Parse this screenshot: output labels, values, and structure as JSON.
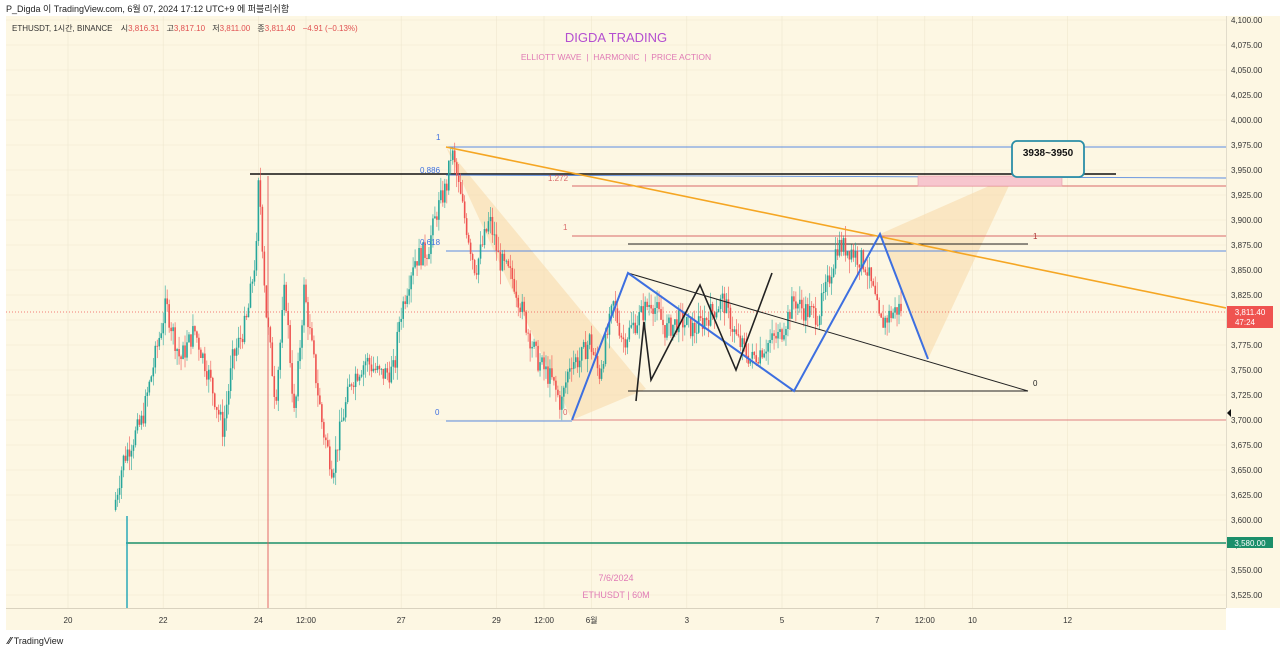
{
  "window": {
    "title": "P_Digda 이 TradingView.com, 6월 07, 2024 17:12 UTC+9 에 퍼블리쉬함"
  },
  "header": {
    "symbol": "ETHUSDT, 1시간, BINANCE",
    "open_label": "시",
    "open": "3,816.31",
    "high_label": "고",
    "high": "3,817.10",
    "low_label": "저",
    "low": "3,811.00",
    "close_label": "종",
    "close": "3,811.40",
    "change": "−4.91 (−0.13%)"
  },
  "branding": {
    "title": "DIGDA TRADING",
    "subtitle": "ELLIOTT WAVE  |  HARMONIC  |  PRICE ACTION",
    "watermark_date": "7/6/2024",
    "watermark_symbol": "ETHUSDT | 60M",
    "footer_logo": "TradingView"
  },
  "annotations": {
    "target_box": "3938~3950",
    "fib_left": [
      "1",
      "0.886",
      "0.618",
      "0"
    ],
    "fib_right": [
      "1.272",
      "1",
      "0"
    ],
    "fib_triangle": [
      "1",
      "0",
      "0"
    ]
  },
  "price_labels": {
    "current_price": "3,811.40",
    "countdown": "47:24",
    "support": "3,580.00"
  },
  "colors": {
    "background": "#fdf7e3",
    "candle_up": "#26a69a",
    "candle_down": "#ef5350",
    "harmonic_fill": "#f8d9a8",
    "trendline_orange": "#f5a623",
    "wave_blue": "#3d6fe0",
    "support_green": "#1b8f6a",
    "target_pink": "#f7c6ce",
    "target_box_border": "#2b8ea7",
    "brand_title": "#b44fd0",
    "brand_subtitle": "#e07ab5"
  },
  "chart_data": {
    "type": "candlestick",
    "title": "DIGDA TRADING",
    "subtitle": "ELLIOTT WAVE  |  HARMONIC  |  PRICE ACTION",
    "series_name": "ETHUSDT, 1시간, BINANCE",
    "y_ticks": [
      "4,100.00",
      "4,075.00",
      "4,050.00",
      "4,025.00",
      "4,000.00",
      "3,975.00",
      "3,950.00",
      "3,925.00",
      "3,900.00",
      "3,875.00",
      "3,850.00",
      "3,825.00",
      "3,800.00",
      "3,775.00",
      "3,750.00",
      "3,725.00",
      "3,700.00",
      "3,675.00",
      "3,650.00",
      "3,625.00",
      "3,600.00",
      "3,575.00",
      "3,550.00",
      "3,525.00"
    ],
    "x_ticks": [
      "20",
      "22",
      "24",
      "12:00",
      "27",
      "29",
      "12:00",
      "6월",
      "3",
      "5",
      "7",
      "12:00",
      "10",
      "12"
    ],
    "ylim": [
      3512,
      4104
    ],
    "price_path": [
      [
        20.9,
        3512
      ],
      [
        21.0,
        3610
      ],
      [
        21.2,
        3660
      ],
      [
        21.4,
        3680
      ],
      [
        21.6,
        3700
      ],
      [
        21.9,
        3770
      ],
      [
        22.1,
        3815
      ],
      [
        22.4,
        3760
      ],
      [
        22.7,
        3790
      ],
      [
        23.0,
        3745
      ],
      [
        23.3,
        3690
      ],
      [
        23.5,
        3760
      ],
      [
        23.8,
        3800
      ],
      [
        24.0,
        3870
      ],
      [
        24.05,
        3945
      ],
      [
        24.2,
        3810
      ],
      [
        24.4,
        3720
      ],
      [
        24.6,
        3835
      ],
      [
        24.8,
        3700
      ],
      [
        25.0,
        3830
      ],
      [
        25.2,
        3760
      ],
      [
        25.4,
        3690
      ],
      [
        25.6,
        3650
      ],
      [
        25.8,
        3700
      ],
      [
        26.0,
        3740
      ],
      [
        26.3,
        3760
      ],
      [
        26.6,
        3745
      ],
      [
        26.9,
        3750
      ],
      [
        27.0,
        3800
      ],
      [
        27.3,
        3860
      ],
      [
        27.6,
        3870
      ],
      [
        27.8,
        3910
      ],
      [
        28.0,
        3935
      ],
      [
        28.1,
        3970
      ],
      [
        28.3,
        3920
      ],
      [
        28.6,
        3850
      ],
      [
        28.9,
        3900
      ],
      [
        29.1,
        3860
      ],
      [
        29.4,
        3840
      ],
      [
        29.7,
        3790
      ],
      [
        29.9,
        3760
      ],
      [
        30.2,
        3740
      ],
      [
        30.4,
        3715
      ],
      [
        30.6,
        3760
      ],
      [
        30.8,
        3760
      ],
      [
        31.0,
        3780
      ],
      [
        31.2,
        3745
      ],
      [
        31.5,
        3815
      ],
      [
        31.7,
        3780
      ],
      [
        32.0,
        3800
      ],
      [
        32.3,
        3820
      ],
      [
        32.6,
        3790
      ],
      [
        32.9,
        3800
      ],
      [
        33.2,
        3790
      ],
      [
        33.5,
        3805
      ],
      [
        33.8,
        3820
      ],
      [
        34.1,
        3780
      ],
      [
        34.4,
        3760
      ],
      [
        34.7,
        3775
      ],
      [
        35.0,
        3785
      ],
      [
        35.3,
        3820
      ],
      [
        35.5,
        3810
      ],
      [
        35.8,
        3805
      ],
      [
        36.0,
        3835
      ],
      [
        36.2,
        3875
      ],
      [
        36.5,
        3870
      ],
      [
        36.8,
        3855
      ],
      [
        37.0,
        3820
      ],
      [
        37.1,
        3795
      ],
      [
        37.3,
        3805
      ],
      [
        37.5,
        3812
      ]
    ]
  }
}
